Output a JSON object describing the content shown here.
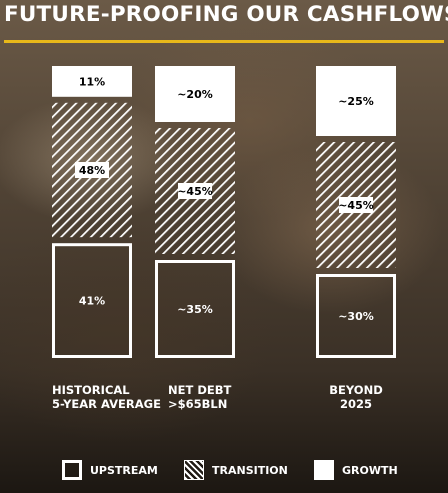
{
  "title": "FUTURE-PROOFING OUR CASHFLOWS",
  "colors": {
    "accent": "#e8b81a",
    "bar": "#ffffff"
  },
  "chart_data": {
    "type": "bar",
    "stacked": true,
    "categories": [
      "HISTORICAL\n5-YEAR AVERAGE",
      "NET DEBT\n>$65BLN",
      "BEYOND\n2025"
    ],
    "series": [
      {
        "name": "UPSTREAM",
        "style": "outline",
        "values": [
          41,
          35,
          30
        ],
        "labels": [
          "41%",
          "~35%",
          "~30%"
        ]
      },
      {
        "name": "TRANSITION",
        "style": "hatched",
        "values": [
          48,
          45,
          45
        ],
        "labels": [
          "48%",
          "~45%",
          "~45%"
        ]
      },
      {
        "name": "GROWTH",
        "style": "solid",
        "values": [
          11,
          20,
          25
        ],
        "labels": [
          "11%",
          "~20%",
          "~25%"
        ]
      }
    ],
    "legend_position": "bottom",
    "grid": false
  }
}
